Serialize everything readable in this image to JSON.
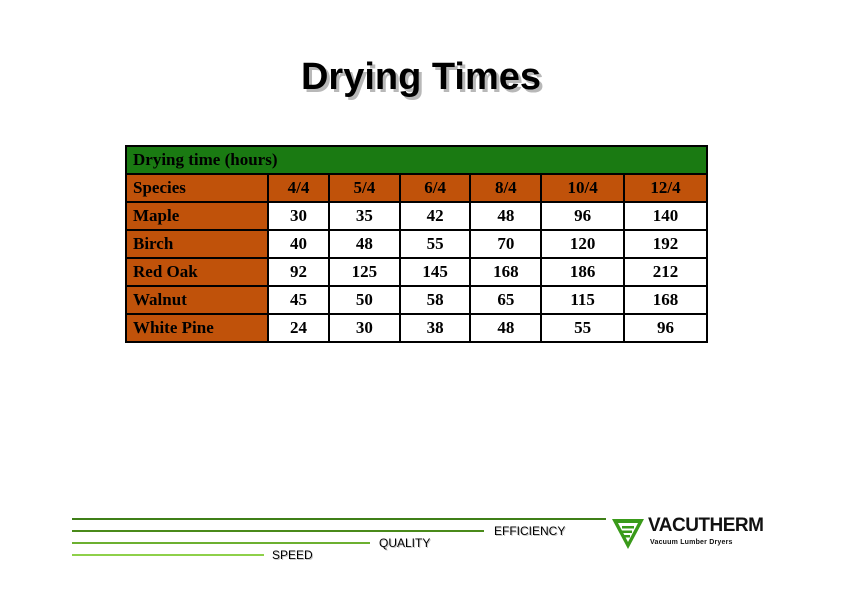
{
  "title": "Drying Times",
  "table": {
    "caption": "Drying time (hours)",
    "row_header_label": "Species",
    "columns": [
      "4/4",
      "5/4",
      "6/4",
      "8/4",
      "10/4",
      "12/4"
    ],
    "rows": [
      {
        "species": "Maple",
        "values": [
          "30",
          "35",
          "42",
          "48",
          "96",
          "140"
        ]
      },
      {
        "species": "Birch",
        "values": [
          "40",
          "48",
          "55",
          "70",
          "120",
          "192"
        ]
      },
      {
        "species": "Red Oak",
        "values": [
          "92",
          "125",
          "145",
          "168",
          "186",
          "212"
        ]
      },
      {
        "species": "Walnut",
        "values": [
          "45",
          "50",
          "58",
          "65",
          "115",
          "168"
        ]
      },
      {
        "species": "White Pine",
        "values": [
          "24",
          "30",
          "38",
          "48",
          "55",
          "96"
        ]
      }
    ]
  },
  "footer": {
    "efficiency": "EFFICIENCY",
    "quality": "QUALITY",
    "speed": "SPEED"
  },
  "logo": {
    "name": "VACUTHERM",
    "tagline": "Vacuum Lumber Dryers"
  },
  "colors": {
    "caption_bg": "#1a7a12",
    "header_bg": "#c0520a",
    "footer_line_dark": "#4a8a1a",
    "footer_line_light": "#8ed04a",
    "logo_green": "#3a9a1a"
  }
}
